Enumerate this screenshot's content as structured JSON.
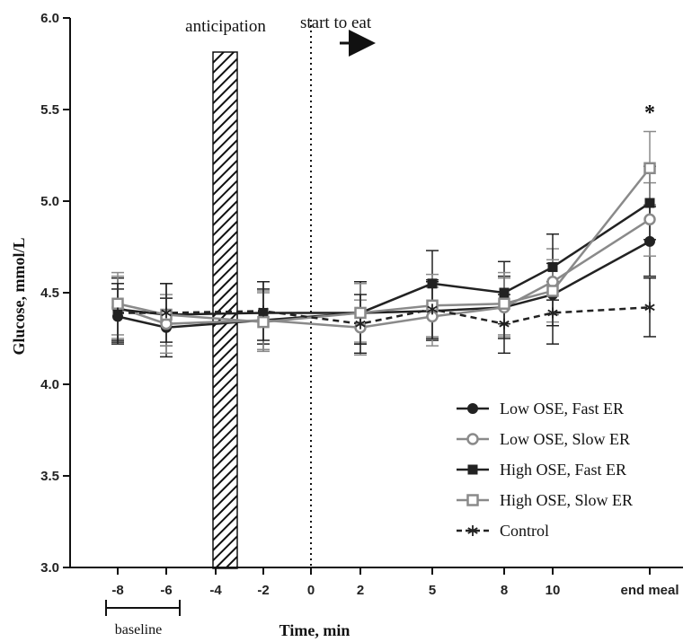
{
  "chart_data": {
    "type": "line",
    "title": "",
    "xlabel": "Time, min",
    "ylabel": "Glucose, mmol/L",
    "ylim": [
      3.0,
      6.0
    ],
    "yticks": [
      "3.0",
      "3.5",
      "4.0",
      "4.5",
      "5.0",
      "5.5",
      "6.0"
    ],
    "categories": [
      "-8",
      "-6",
      "-4",
      "-2",
      "0",
      "2",
      "5",
      "8",
      "10",
      "end meal"
    ],
    "grid": false,
    "legend_position": "bottom-right",
    "annotations": {
      "anticipation": "anticipation",
      "start_to_eat": "start to eat",
      "baseline": "baseline",
      "significance": "*"
    },
    "series": [
      {
        "name": "Low OSE, Fast ER",
        "color": "#222222",
        "marker": "filled-circle",
        "dashed": false,
        "points": [
          {
            "x": "-8",
            "y": 4.37,
            "err": 0.15
          },
          {
            "x": "-6",
            "y": 4.31,
            "err": 0.16
          },
          {
            "x": "-2",
            "y": 4.35,
            "err": 0.17
          },
          {
            "x": "2",
            "y": 4.39,
            "err": 0.17
          },
          {
            "x": "5",
            "y": 4.4,
            "err": 0.16
          },
          {
            "x": "8",
            "y": 4.42,
            "err": 0.17
          },
          {
            "x": "10",
            "y": 4.49,
            "err": 0.17
          },
          {
            "x": "end meal",
            "y": 4.78,
            "err": 0.19
          }
        ]
      },
      {
        "name": "Low OSE, Slow ER",
        "color": "#8a8a8a",
        "marker": "open-circle",
        "dashed": false,
        "points": [
          {
            "x": "-8",
            "y": 4.42,
            "err": 0.17
          },
          {
            "x": "-6",
            "y": 4.33,
            "err": 0.16
          },
          {
            "x": "-2",
            "y": 4.35,
            "err": 0.16
          },
          {
            "x": "2",
            "y": 4.31,
            "err": 0.15
          },
          {
            "x": "5",
            "y": 4.37,
            "err": 0.16
          },
          {
            "x": "8",
            "y": 4.42,
            "err": 0.16
          },
          {
            "x": "10",
            "y": 4.56,
            "err": 0.18
          },
          {
            "x": "end meal",
            "y": 4.9,
            "err": 0.2
          }
        ]
      },
      {
        "name": "High OSE, Fast ER",
        "color": "#222222",
        "marker": "filled-square",
        "dashed": false,
        "points": [
          {
            "x": "-8",
            "y": 4.41,
            "err": 0.17
          },
          {
            "x": "-6",
            "y": 4.38,
            "err": 0.17
          },
          {
            "x": "-2",
            "y": 4.39,
            "err": 0.17
          },
          {
            "x": "2",
            "y": 4.39,
            "err": 0.17
          },
          {
            "x": "5",
            "y": 4.55,
            "err": 0.18
          },
          {
            "x": "8",
            "y": 4.5,
            "err": 0.17
          },
          {
            "x": "10",
            "y": 4.64,
            "err": 0.18
          },
          {
            "x": "end meal",
            "y": 4.99,
            "err": 0.2
          }
        ]
      },
      {
        "name": "High OSE, Slow ER",
        "color": "#8a8a8a",
        "marker": "open-square",
        "dashed": false,
        "points": [
          {
            "x": "-8",
            "y": 4.44,
            "err": 0.17
          },
          {
            "x": "-6",
            "y": 4.38,
            "err": 0.17
          },
          {
            "x": "-2",
            "y": 4.34,
            "err": 0.16
          },
          {
            "x": "2",
            "y": 4.39,
            "err": 0.16
          },
          {
            "x": "5",
            "y": 4.43,
            "err": 0.17
          },
          {
            "x": "8",
            "y": 4.44,
            "err": 0.17
          },
          {
            "x": "10",
            "y": 4.51,
            "err": 0.17
          },
          {
            "x": "end meal",
            "y": 5.18,
            "err": 0.2
          }
        ]
      },
      {
        "name": "Control",
        "color": "#222222",
        "marker": "asterisk",
        "dashed": true,
        "points": [
          {
            "x": "-8",
            "y": 4.39,
            "err": 0.16
          },
          {
            "x": "-6",
            "y": 4.39,
            "err": 0.16
          },
          {
            "x": "-2",
            "y": 4.4,
            "err": 0.16
          },
          {
            "x": "2",
            "y": 4.33,
            "err": 0.16
          },
          {
            "x": "5",
            "y": 4.41,
            "err": 0.16
          },
          {
            "x": "8",
            "y": 4.33,
            "err": 0.16
          },
          {
            "x": "10",
            "y": 4.39,
            "err": 0.17
          },
          {
            "x": "end meal",
            "y": 4.42,
            "err": 0.16
          }
        ]
      }
    ]
  }
}
